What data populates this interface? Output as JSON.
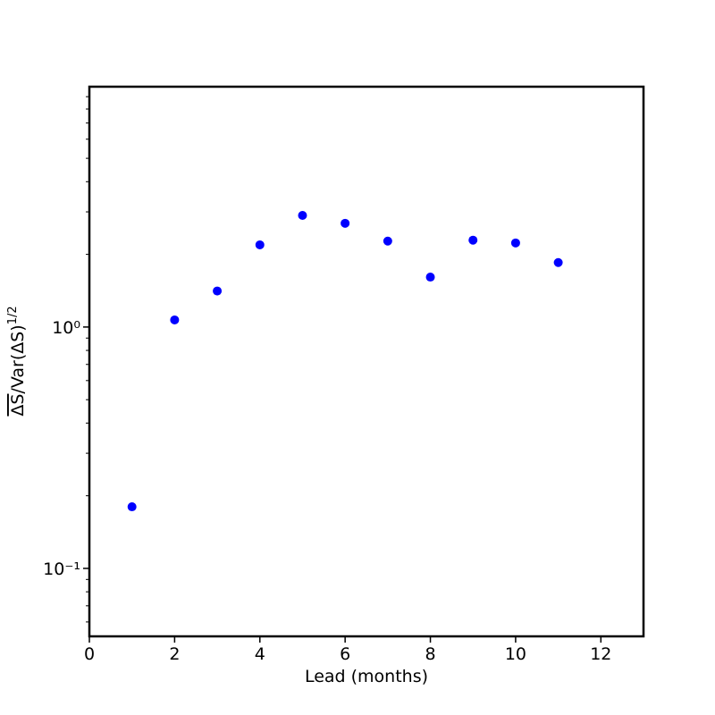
{
  "chart_data": {
    "type": "scatter",
    "xlabel": "Lead (months)",
    "ylabel": {
      "overline": "ΔS",
      "main": "/Var(ΔS)",
      "sup": "1/2"
    },
    "x": [
      1,
      2,
      3,
      4,
      5,
      6,
      7,
      8,
      9,
      10,
      11
    ],
    "series": [
      {
        "color": "#0000ff",
        "values": [
          0.18,
          1.07,
          1.41,
          2.19,
          2.9,
          2.69,
          2.27,
          1.61,
          2.29,
          2.23,
          1.85
        ]
      }
    ],
    "xlim": [
      0,
      13
    ],
    "xticks": [
      0,
      2,
      4,
      6,
      8,
      10,
      12
    ],
    "ylim": [
      0.0523,
      9.9
    ],
    "yscale": "log",
    "yticks": [
      {
        "value": 0.1,
        "label": "10⁻¹"
      },
      {
        "value": 1,
        "label": "10⁰"
      }
    ],
    "yminorticks": [
      0.06,
      0.07,
      0.08,
      0.09,
      0.2,
      0.3,
      0.4,
      0.5,
      0.6,
      0.7,
      0.8,
      0.9,
      2,
      3,
      4,
      5,
      6,
      7,
      8,
      9
    ],
    "grid": false
  }
}
